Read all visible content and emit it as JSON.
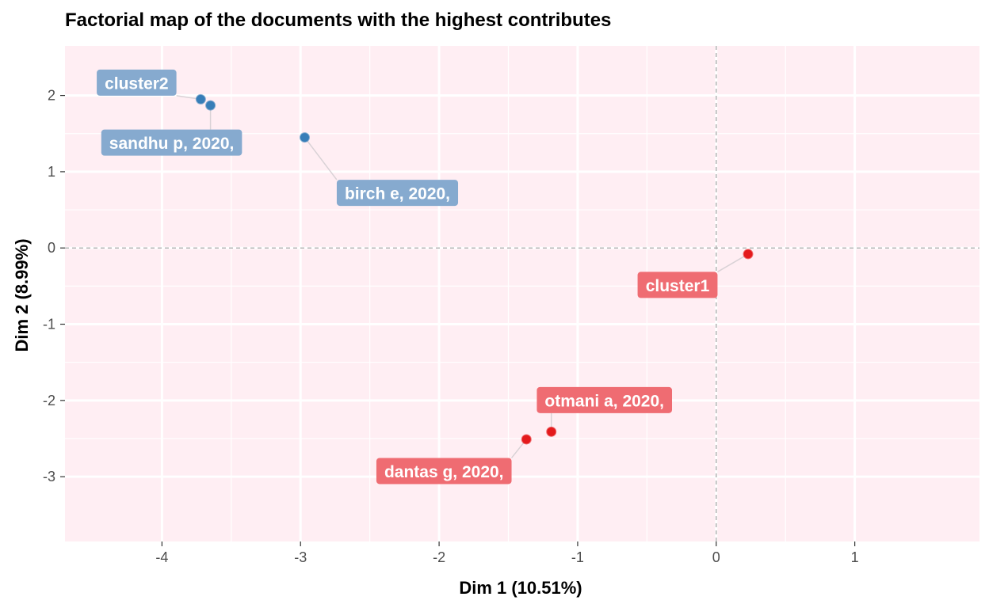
{
  "chart_data": {
    "type": "scatter",
    "title": "Factorial map of the documents with the highest contributes",
    "xlabel": "Dim 1 (10.51%)",
    "ylabel": "Dim 2 (8.99%)",
    "xlim": [
      -4.7,
      1.9
    ],
    "ylim": [
      -3.85,
      2.65
    ],
    "x_ticks": [
      -4,
      -3,
      -2,
      -1,
      0,
      1
    ],
    "y_ticks": [
      2,
      1,
      0,
      -1,
      -2,
      -3
    ],
    "x_tick_labels": [
      "-4",
      "-3",
      "-2",
      "-1",
      "0",
      "1"
    ],
    "y_tick_labels": [
      "2",
      "1",
      "0",
      "-1",
      "-2",
      "-3"
    ],
    "grid": true,
    "reference_lines": {
      "x": 0,
      "y": 0,
      "style": "dashed"
    },
    "colors": {
      "panel": "#ffeef3",
      "grid": "#ffffff",
      "cluster1": "#e41a1c",
      "cluster2": "#377eb8",
      "cluster1_label": "#ef6c72",
      "cluster2_label": "#86aacf",
      "ref_line": "#a6a6a6",
      "connector": "#d9d2d6"
    },
    "series": [
      {
        "name": "cluster1",
        "color": "#e41a1c",
        "points": [
          {
            "x": 0.23,
            "y": -0.08
          },
          {
            "x": -1.19,
            "y": -2.41
          },
          {
            "x": -1.37,
            "y": -2.51
          }
        ]
      },
      {
        "name": "cluster2",
        "color": "#377eb8",
        "points": [
          {
            "x": -3.72,
            "y": 1.95
          },
          {
            "x": -3.65,
            "y": 1.87
          },
          {
            "x": -2.97,
            "y": 1.45
          }
        ]
      }
    ],
    "labels": [
      {
        "text": "cluster1",
        "cluster": "cluster1",
        "x": 0.23,
        "y": -0.08
      },
      {
        "text": "otmani a, 2020,",
        "cluster": "cluster1",
        "x": -1.19,
        "y": -2.41
      },
      {
        "text": "dantas g, 2020,",
        "cluster": "cluster1",
        "x": -1.37,
        "y": -2.51
      },
      {
        "text": "cluster2",
        "cluster": "cluster2",
        "x": -3.72,
        "y": 1.95
      },
      {
        "text": "sandhu p, 2020,",
        "cluster": "cluster2",
        "x": -3.65,
        "y": 1.87
      },
      {
        "text": "birch e, 2020,",
        "cluster": "cluster2",
        "x": -2.97,
        "y": 1.45
      }
    ]
  }
}
